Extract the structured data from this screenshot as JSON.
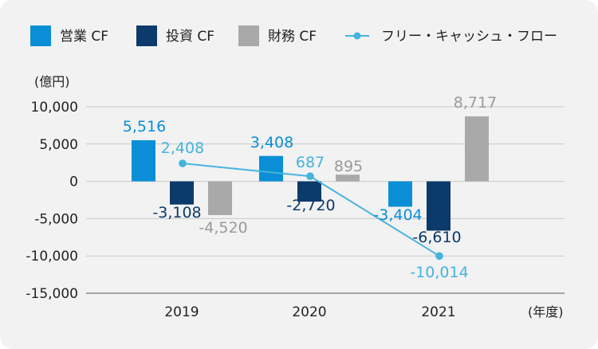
{
  "chart_data": {
    "type": "bar",
    "y_unit_label": "(億円)",
    "x_unit_label": "(年度)",
    "categories": [
      "2019",
      "2020",
      "2021"
    ],
    "ylim": [
      -15000,
      10000
    ],
    "yticks": [
      10000,
      5000,
      0,
      -5000,
      -10000,
      -15000
    ],
    "ytick_labels": [
      "10,000",
      "5,000",
      "0",
      "-5,000",
      "-10,000",
      "-15,000"
    ],
    "series": [
      {
        "name": "営業 CF",
        "kind": "bar",
        "color": "#0a8fd6",
        "label_color": "#0a8fd6",
        "values": [
          5516,
          3408,
          -3404
        ],
        "labels": [
          "5,516",
          "3,408",
          "-3,404"
        ]
      },
      {
        "name": "投資 CF",
        "kind": "bar",
        "color": "#0b3a6b",
        "label_color": "#0b3a6b",
        "values": [
          -3108,
          -2720,
          -6610
        ],
        "labels": [
          "-3,108",
          "-2,720",
          "-6,610"
        ]
      },
      {
        "name": "財務 CF",
        "kind": "bar",
        "color": "#a9a9a9",
        "label_color": "#9a9a9a",
        "values": [
          -4520,
          895,
          8717
        ],
        "labels": [
          "-4,520",
          "895",
          "8,717"
        ]
      },
      {
        "name": "フリー・キャッシュ・フロー",
        "kind": "line",
        "color": "#45b3de",
        "label_color": "#45b3de",
        "values": [
          2408,
          687,
          -10014
        ],
        "labels": [
          "2,408",
          "687",
          "-10,014"
        ]
      }
    ]
  }
}
